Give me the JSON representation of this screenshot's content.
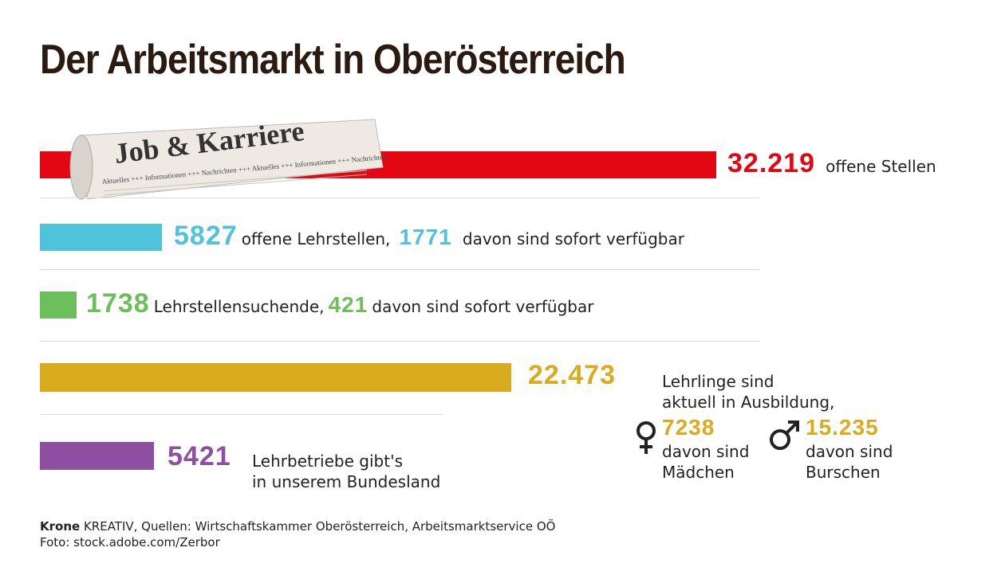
{
  "title": "Der Arbeitsmarkt in Oberösterreich",
  "image": {
    "headline": "Job & Karriere",
    "ticker": "Aktuelles +++ Informationen +++ Nachrichten +++ Aktuelles +++ Informationen +++ Nachrichten"
  },
  "bars": [
    {
      "value": 32219,
      "value_label": "32.219",
      "color": "#e30613",
      "text": "offene Stellen"
    },
    {
      "value": 5827,
      "color": "#4fc3dc",
      "text": "offene Lehrstellen,",
      "sub_value": 1771,
      "sub_text": "davon sind sofort verfügbar"
    },
    {
      "value": 1738,
      "color": "#6cbf5a",
      "text": "Lehrstellensuchende,",
      "sub_value": 421,
      "sub_text": "davon sind sofort verfügbar"
    },
    {
      "value": 22473,
      "value_label": "22.473",
      "color": "#d9ac1f",
      "text_lines": [
        "Lehrlinge sind",
        "aktuell in Ausbildung,"
      ],
      "female": {
        "value": 7238,
        "lines": [
          "davon sind",
          "Mädchen"
        ]
      },
      "male": {
        "value": 15235,
        "value_label": "15.235",
        "lines": [
          "davon sind",
          "Burschen"
        ]
      }
    },
    {
      "value": 5421,
      "color": "#8e4fa0",
      "text_lines": [
        "Lehrbetriebe gibt's",
        "in unserem Bundesland"
      ]
    }
  ],
  "footer": {
    "brand": "Krone",
    "source": "KREATIV, Quellen: Wirtschaftskammer Oberösterreich, Arbeitsmarktservice OÖ",
    "photo": "Foto: stock.adobe.com/Zerbor"
  }
}
